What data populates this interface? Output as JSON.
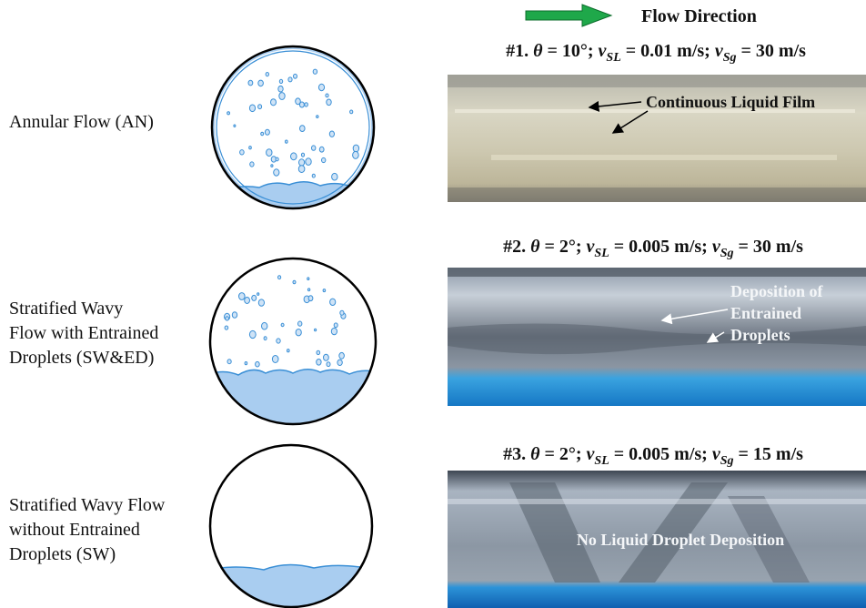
{
  "header": {
    "flow_direction": "Flow Direction"
  },
  "rows": [
    {
      "label": [
        "Annular Flow (AN)"
      ],
      "caption": [
        "#1. ",
        "θ",
        " = 10°; ",
        "v",
        "SL",
        " = 0.01 m/s; ",
        "v",
        "Sg",
        " = 30 m/s"
      ],
      "annotation": [
        "Continuous Liquid Film"
      ]
    },
    {
      "label": [
        "Stratified Wavy",
        "Flow with Entrained",
        "Droplets (SW&ED)"
      ],
      "caption": [
        "#2. ",
        "θ",
        " = 2°; ",
        "v",
        "SL",
        " = 0.005 m/s; ",
        "v",
        "Sg",
        " = 30 m/s"
      ],
      "annotation": [
        "Deposition of",
        "Entrained",
        "Droplets"
      ]
    },
    {
      "label": [
        "Stratified Wavy Flow",
        "without Entrained",
        "Droplets (SW)"
      ],
      "caption": [
        "#3. ",
        "θ",
        " = 2°; ",
        "v",
        "SL",
        " = 0.005 m/s; ",
        "v",
        "Sg",
        " = 15 m/s"
      ],
      "annotation": [
        "No Liquid Droplet Deposition"
      ]
    }
  ]
}
